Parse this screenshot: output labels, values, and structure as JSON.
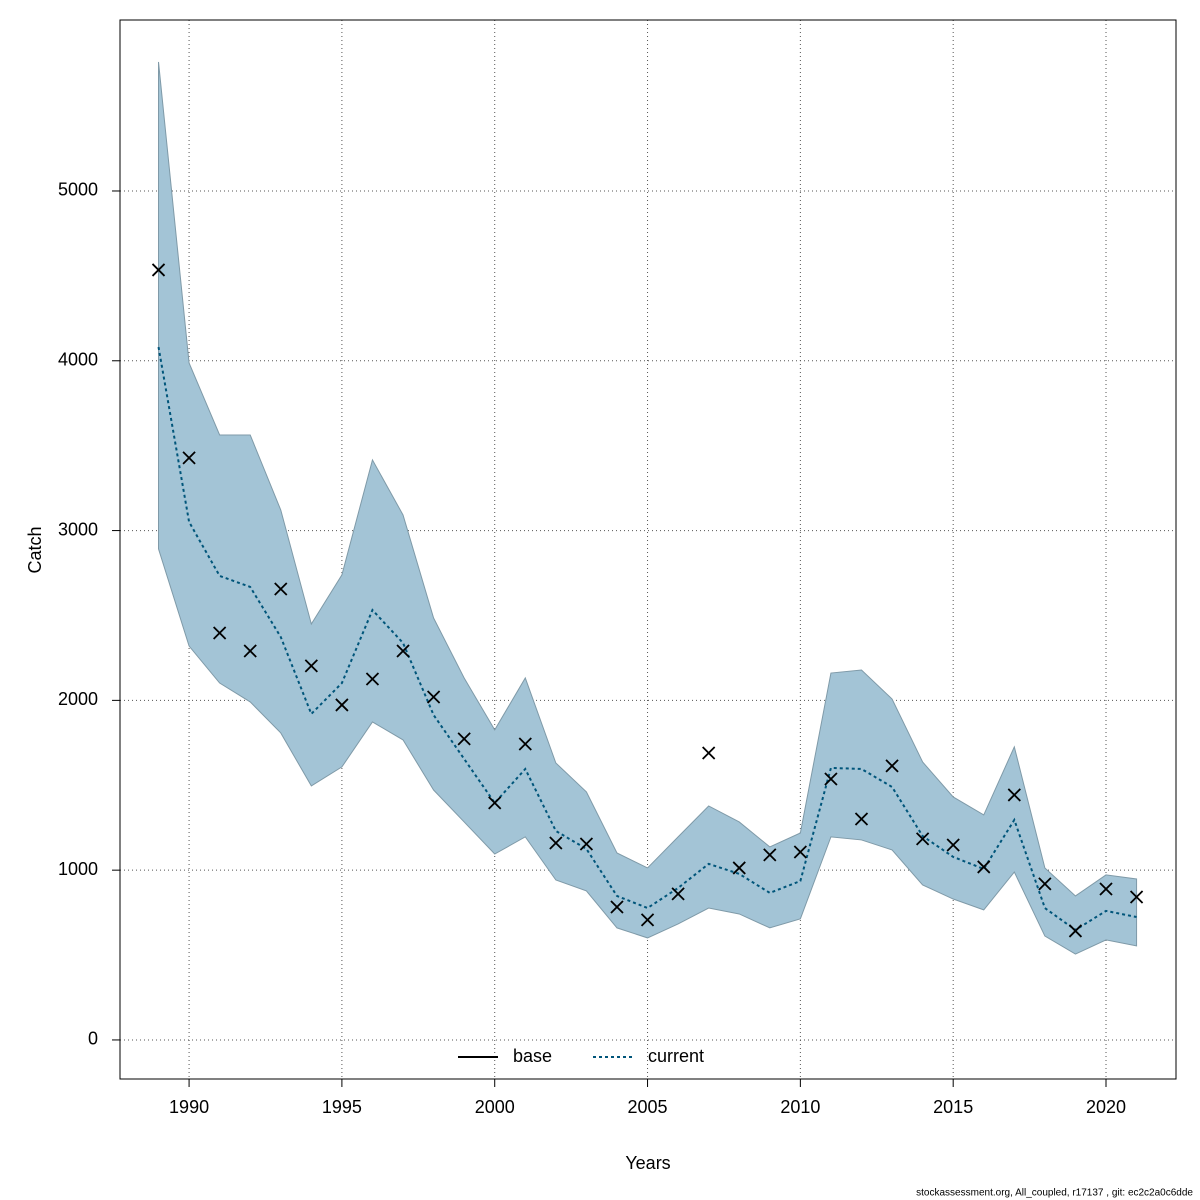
{
  "chart_data": {
    "type": "line",
    "xlabel": "Years",
    "ylabel": "Catch",
    "footer": "stockassessment.org, All_coupled, r17137 , git: ec2c2a0c6dde",
    "x": [
      1989,
      1990,
      1991,
      1992,
      1993,
      1994,
      1995,
      1996,
      1997,
      1998,
      1999,
      2000,
      2001,
      2002,
      2003,
      2004,
      2005,
      2006,
      2007,
      2008,
      2009,
      2010,
      2011,
      2012,
      2013,
      2014,
      2015,
      2016,
      2017,
      2018,
      2019,
      2020,
      2021
    ],
    "series": [
      {
        "name": "current",
        "color": "#00557a",
        "dash": true,
        "values": [
          4081,
          3051,
          2733,
          2668,
          2373,
          1920,
          2102,
          2532,
          2338,
          1914,
          1655,
          1396,
          1596,
          1231,
          1125,
          848,
          777,
          895,
          1037,
          978,
          866,
          936,
          1602,
          1596,
          1490,
          1201,
          1078,
          1007,
          1296,
          777,
          648,
          760,
          724
        ],
        "upper": [
          5760,
          3987,
          3563,
          3563,
          3121,
          2450,
          2739,
          3416,
          3092,
          2485,
          2132,
          1826,
          2132,
          1631,
          1461,
          1101,
          1013,
          1196,
          1378,
          1284,
          1137,
          1219,
          2161,
          2179,
          2008,
          1637,
          1431,
          1325,
          1726,
          1013,
          848,
          972,
          948
        ],
        "lower": [
          2892,
          2320,
          2102,
          1991,
          1808,
          1496,
          1608,
          1873,
          1767,
          1472,
          1284,
          1095,
          1196,
          942,
          878,
          660,
          601,
          683,
          777,
          742,
          660,
          713,
          1196,
          1178,
          1119,
          913,
          830,
          766,
          989,
          612,
          506,
          589,
          554
        ],
        "band_color": "#a3c4d6"
      }
    ],
    "observations": [
      4535,
      3428,
      2397,
      2291,
      2656,
      2203,
      1973,
      2126,
      2291,
      2020,
      1773,
      1396,
      1743,
      1160,
      1154,
      783,
      707,
      860,
      1690,
      1013,
      1090,
      1107,
      1537,
      1301,
      1614,
      1184,
      1148,
      1019,
      1443,
      919,
      642,
      889,
      842
    ],
    "legend": [
      {
        "name": "base",
        "color": "#000000",
        "dash": false
      },
      {
        "name": "current",
        "color": "#00557a",
        "dash": true
      }
    ],
    "legend_position": "bottom",
    "xlim": [
      1987.74,
      2022.29
    ],
    "ylim": [
      -230,
      6007
    ],
    "xticks": [
      1990,
      1995,
      2000,
      2005,
      2010,
      2015,
      2020
    ],
    "yticks": [
      0,
      1000,
      2000,
      3000,
      4000,
      5000
    ],
    "grid": true
  }
}
